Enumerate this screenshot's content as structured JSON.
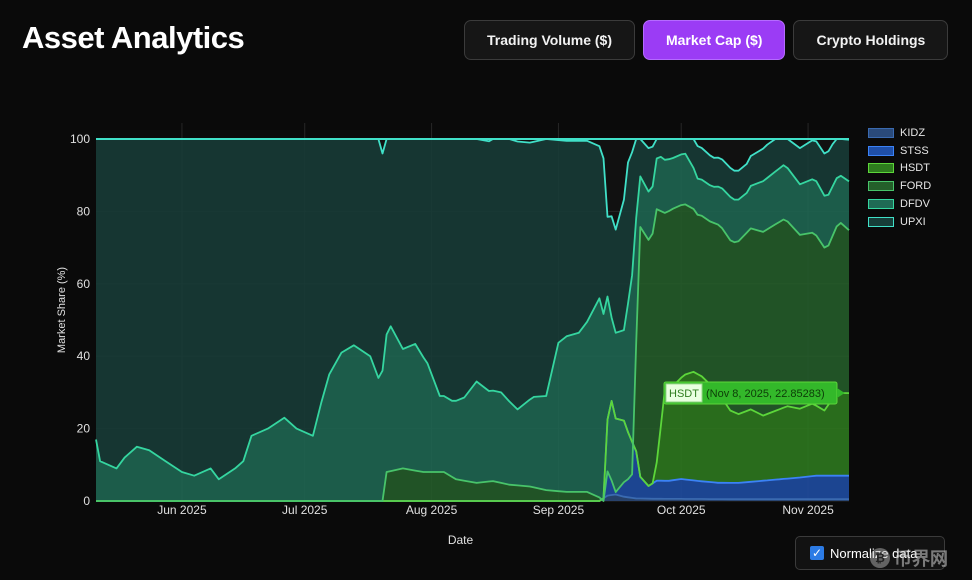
{
  "header": {
    "title": "Asset Analytics"
  },
  "tabs": [
    {
      "label": "Trading Volume ($)",
      "active": false
    },
    {
      "label": "Market Cap ($)",
      "active": true
    },
    {
      "label": "Crypto Holdings",
      "active": false
    }
  ],
  "controls": {
    "normalize_label": "Normalize data",
    "normalize_checked": true
  },
  "watermark": {
    "coin": "₿",
    "text": "币界网"
  },
  "colors": {
    "background": "#0a0a0a",
    "accent": "#9b3cf5",
    "grid": "#262626"
  },
  "chart_data": {
    "type": "area",
    "stacked": true,
    "normalized": true,
    "xlabel": "Date",
    "ylabel": "Market Share (%)",
    "ylim": [
      0,
      100
    ],
    "yticks": [
      0,
      20,
      40,
      60,
      80,
      100
    ],
    "xlim": [
      "2025-05-11",
      "2025-11-11"
    ],
    "xticks": [
      {
        "date": "2025-06-01",
        "label": "Jun 2025"
      },
      {
        "date": "2025-07-01",
        "label": "Jul 2025"
      },
      {
        "date": "2025-08-01",
        "label": "Aug 2025"
      },
      {
        "date": "2025-09-01",
        "label": "Sep 2025"
      },
      {
        "date": "2025-10-01",
        "label": "Oct 2025"
      },
      {
        "date": "2025-11-01",
        "label": "Nov 2025"
      }
    ],
    "legend_position": "right",
    "legend": [
      "KIDZ",
      "STSS",
      "HSDT",
      "FORD",
      "DFDV",
      "UPXI"
    ],
    "series": [
      {
        "name": "KIDZ",
        "color": "#2a4a7a",
        "line": "#3a6ab0",
        "points": [
          [
            "2025-05-11",
            0
          ],
          [
            "2025-09-11",
            0
          ],
          [
            "2025-09-13",
            1.5
          ],
          [
            "2025-09-15",
            1.8
          ],
          [
            "2025-09-17",
            1.2
          ],
          [
            "2025-09-20",
            0.7
          ],
          [
            "2025-09-25",
            0.6
          ],
          [
            "2025-10-15",
            0.5
          ],
          [
            "2025-11-11",
            0.5
          ]
        ]
      },
      {
        "name": "STSS",
        "color": "#1f4fa8",
        "line": "#3b82f6",
        "points": [
          [
            "2025-05-11",
            0
          ],
          [
            "2025-09-12",
            0
          ],
          [
            "2025-09-13",
            21
          ],
          [
            "2025-09-14",
            26
          ],
          [
            "2025-09-15",
            21
          ],
          [
            "2025-09-17",
            21
          ],
          [
            "2025-09-18",
            18
          ],
          [
            "2025-09-20",
            13
          ],
          [
            "2025-09-21",
            6
          ],
          [
            "2025-09-23",
            3.5
          ],
          [
            "2025-09-25",
            5
          ],
          [
            "2025-09-28",
            5
          ],
          [
            "2025-10-01",
            5.5
          ],
          [
            "2025-10-05",
            5
          ],
          [
            "2025-10-10",
            4.5
          ],
          [
            "2025-10-15",
            4.5
          ],
          [
            "2025-10-20",
            5
          ],
          [
            "2025-10-25",
            5.5
          ],
          [
            "2025-10-30",
            6
          ],
          [
            "2025-11-03",
            6.5
          ],
          [
            "2025-11-07",
            6.5
          ],
          [
            "2025-11-11",
            6.5
          ]
        ]
      },
      {
        "name": "HSDT",
        "color": "#2e7d1e",
        "line": "#5cd63a",
        "points": [
          [
            "2025-05-11",
            0
          ],
          [
            "2025-09-24",
            0
          ],
          [
            "2025-09-25",
            5
          ],
          [
            "2025-09-27",
            25
          ],
          [
            "2025-09-29",
            26
          ],
          [
            "2025-10-02",
            29
          ],
          [
            "2025-10-04",
            30
          ],
          [
            "2025-10-06",
            29
          ],
          [
            "2025-10-08",
            27
          ],
          [
            "2025-10-10",
            25
          ],
          [
            "2025-10-13",
            20
          ],
          [
            "2025-10-15",
            19
          ],
          [
            "2025-10-18",
            20
          ],
          [
            "2025-10-21",
            18
          ],
          [
            "2025-10-24",
            19
          ],
          [
            "2025-10-27",
            20
          ],
          [
            "2025-10-30",
            19
          ],
          [
            "2025-11-02",
            20
          ],
          [
            "2025-11-05",
            18
          ],
          [
            "2025-11-08",
            22.85
          ],
          [
            "2025-11-11",
            22.8
          ]
        ]
      },
      {
        "name": "FORD",
        "color": "#245f2a",
        "line": "#48c46a",
        "points": [
          [
            "2025-05-11",
            0
          ],
          [
            "2025-07-20",
            0
          ],
          [
            "2025-07-21",
            8
          ],
          [
            "2025-07-25",
            9
          ],
          [
            "2025-07-30",
            8
          ],
          [
            "2025-08-04",
            8
          ],
          [
            "2025-08-07",
            6
          ],
          [
            "2025-08-12",
            5
          ],
          [
            "2025-08-16",
            5.5
          ],
          [
            "2025-08-20",
            4.5
          ],
          [
            "2025-08-25",
            4
          ],
          [
            "2025-08-29",
            3
          ],
          [
            "2025-09-03",
            2.5
          ],
          [
            "2025-09-08",
            2.5
          ],
          [
            "2025-09-11",
            1
          ],
          [
            "2025-09-14",
            -22
          ],
          [
            "2025-09-17",
            -17
          ],
          [
            "2025-09-19",
            -9
          ],
          [
            "2025-09-21",
            69
          ],
          [
            "2025-09-23",
            68
          ],
          [
            "2025-09-25",
            70
          ],
          [
            "2025-09-27",
            49
          ],
          [
            "2025-09-29",
            49
          ],
          [
            "2025-10-02",
            47
          ],
          [
            "2025-10-05",
            44
          ],
          [
            "2025-10-08",
            45
          ],
          [
            "2025-10-11",
            47
          ],
          [
            "2025-10-14",
            47
          ],
          [
            "2025-10-18",
            50
          ],
          [
            "2025-10-22",
            51
          ],
          [
            "2025-10-26",
            52
          ],
          [
            "2025-10-30",
            48
          ],
          [
            "2025-11-03",
            47
          ],
          [
            "2025-11-06",
            44
          ],
          [
            "2025-11-09",
            47
          ],
          [
            "2025-11-11",
            45
          ]
        ]
      },
      {
        "name": "DFDV",
        "color": "#1f6a55",
        "line": "#35d6a0",
        "points": [
          [
            "2025-05-11",
            17
          ],
          [
            "2025-05-12",
            11
          ],
          [
            "2025-05-16",
            9
          ],
          [
            "2025-05-18",
            12
          ],
          [
            "2025-05-21",
            15
          ],
          [
            "2025-05-24",
            14
          ],
          [
            "2025-05-28",
            11
          ],
          [
            "2025-06-01",
            8
          ],
          [
            "2025-06-04",
            7
          ],
          [
            "2025-06-08",
            9
          ],
          [
            "2025-06-10",
            6
          ],
          [
            "2025-06-14",
            9
          ],
          [
            "2025-06-16",
            11
          ],
          [
            "2025-06-18",
            18
          ],
          [
            "2025-06-22",
            20
          ],
          [
            "2025-06-26",
            23
          ],
          [
            "2025-06-29",
            20
          ],
          [
            "2025-07-03",
            18
          ],
          [
            "2025-07-05",
            27
          ],
          [
            "2025-07-07",
            35
          ],
          [
            "2025-07-10",
            41
          ],
          [
            "2025-07-13",
            43
          ],
          [
            "2025-07-17",
            40
          ],
          [
            "2025-07-19",
            34
          ],
          [
            "2025-07-22",
            40
          ],
          [
            "2025-07-25",
            33
          ],
          [
            "2025-07-28",
            35
          ],
          [
            "2025-07-31",
            30
          ],
          [
            "2025-08-03",
            21
          ],
          [
            "2025-08-06",
            21
          ],
          [
            "2025-08-09",
            23
          ],
          [
            "2025-08-12",
            28
          ],
          [
            "2025-08-15",
            25
          ],
          [
            "2025-08-18",
            25
          ],
          [
            "2025-08-22",
            21
          ],
          [
            "2025-08-26",
            25
          ],
          [
            "2025-08-29",
            26
          ],
          [
            "2025-09-01",
            41
          ],
          [
            "2025-09-03",
            43
          ],
          [
            "2025-09-06",
            44
          ],
          [
            "2025-09-08",
            47
          ],
          [
            "2025-09-11",
            55
          ],
          [
            "2025-09-14",
            45
          ],
          [
            "2025-09-17",
            42
          ],
          [
            "2025-09-19",
            55
          ],
          [
            "2025-09-21",
            14
          ],
          [
            "2025-09-24",
            13
          ],
          [
            "2025-09-26",
            15
          ],
          [
            "2025-09-29",
            14
          ],
          [
            "2025-10-02",
            14
          ],
          [
            "2025-10-05",
            10
          ],
          [
            "2025-10-09",
            10
          ],
          [
            "2025-10-13",
            12
          ],
          [
            "2025-10-17",
            11
          ],
          [
            "2025-10-21",
            14
          ],
          [
            "2025-10-26",
            15
          ],
          [
            "2025-10-30",
            14
          ],
          [
            "2025-11-03",
            15
          ],
          [
            "2025-11-06",
            14
          ],
          [
            "2025-11-09",
            13
          ],
          [
            "2025-11-11",
            13.5
          ]
        ]
      },
      {
        "name": "UPXI",
        "color": "#173d38",
        "line": "#40e0c8",
        "points": [
          [
            "2025-05-11",
            83
          ],
          [
            "2025-05-12",
            89
          ],
          [
            "2025-05-16",
            91
          ],
          [
            "2025-05-18",
            88
          ],
          [
            "2025-05-21",
            85
          ],
          [
            "2025-05-24",
            86
          ],
          [
            "2025-05-28",
            89
          ],
          [
            "2025-06-01",
            92
          ],
          [
            "2025-06-04",
            93
          ],
          [
            "2025-06-08",
            91
          ],
          [
            "2025-06-10",
            94
          ],
          [
            "2025-06-14",
            91
          ],
          [
            "2025-06-16",
            89
          ],
          [
            "2025-06-18",
            82
          ],
          [
            "2025-06-22",
            80
          ],
          [
            "2025-06-26",
            77
          ],
          [
            "2025-06-29",
            80
          ],
          [
            "2025-07-03",
            82
          ],
          [
            "2025-07-05",
            73
          ],
          [
            "2025-07-07",
            65
          ],
          [
            "2025-07-10",
            59
          ],
          [
            "2025-07-13",
            57
          ],
          [
            "2025-07-17",
            60
          ],
          [
            "2025-07-19",
            66
          ],
          [
            "2025-07-20",
            60
          ],
          [
            "2025-07-22",
            52
          ],
          [
            "2025-07-25",
            58
          ],
          [
            "2025-07-28",
            57
          ],
          [
            "2025-07-31",
            62
          ],
          [
            "2025-08-03",
            71
          ],
          [
            "2025-08-04",
            71
          ],
          [
            "2025-08-06",
            73
          ],
          [
            "2025-08-07",
            75
          ],
          [
            "2025-08-09",
            72
          ],
          [
            "2025-08-12",
            67
          ],
          [
            "2025-08-15",
            69
          ],
          [
            "2025-08-16",
            69.5
          ],
          [
            "2025-08-18",
            70
          ],
          [
            "2025-08-20",
            75
          ],
          [
            "2025-08-22",
            74
          ],
          [
            "2025-08-25",
            71
          ],
          [
            "2025-08-26",
            70.5
          ],
          [
            "2025-08-29",
            71
          ],
          [
            "2025-09-01",
            56
          ],
          [
            "2025-09-03",
            54
          ],
          [
            "2025-09-06",
            53
          ],
          [
            "2025-09-08",
            50
          ],
          [
            "2025-09-11",
            42
          ],
          [
            "2025-09-12",
            43
          ],
          [
            "2025-09-13",
            22
          ],
          [
            "2025-09-14",
            28
          ],
          [
            "2025-09-15",
            28.5
          ],
          [
            "2025-09-17",
            36
          ],
          [
            "2025-09-18",
            39
          ],
          [
            "2025-09-19",
            34
          ],
          [
            "2025-09-20",
            36
          ],
          [
            "2025-09-21",
            11
          ],
          [
            "2025-09-23",
            12
          ],
          [
            "2025-09-24",
            11
          ],
          [
            "2025-09-25",
            9
          ],
          [
            "2025-09-26",
            9
          ],
          [
            "2025-09-27",
            9
          ],
          [
            "2025-09-29",
            9
          ],
          [
            "2025-10-02",
            8
          ],
          [
            "2025-10-05",
            9
          ],
          [
            "2025-10-09",
            8
          ],
          [
            "2025-10-13",
            8
          ],
          [
            "2025-10-17",
            8
          ],
          [
            "2025-10-21",
            9
          ],
          [
            "2025-10-26",
            10
          ],
          [
            "2025-10-30",
            10
          ],
          [
            "2025-11-03",
            11
          ],
          [
            "2025-11-06",
            12
          ],
          [
            "2025-11-09",
            11
          ],
          [
            "2025-11-11",
            11.5
          ]
        ]
      }
    ],
    "tooltip": {
      "series": "HSDT",
      "date": "2025-11-08",
      "text": "(Nov 8, 2025, 22.85283)"
    }
  }
}
